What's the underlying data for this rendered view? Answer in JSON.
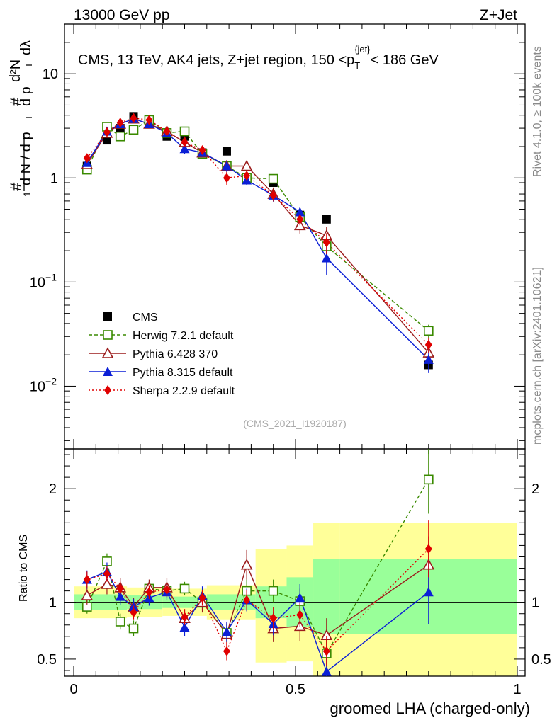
{
  "header": {
    "left": "13000 GeV pp",
    "right": "Z+Jet"
  },
  "side_text": {
    "rivet": "Rivet 4.1.0, ≥ 100k events",
    "source": "mcplots.cern.ch [arXiv:2401.10621]"
  },
  "chart_data": {
    "type": "scatter",
    "title": "CMS, 13 TeV, AK4 jets, Z+jet region, 150 <p",
    "title_sub": "T",
    "title_sup": "{jet}",
    "title_tail": "< 186 GeV",
    "analysis_id": "(CMS_2021_I1920187)",
    "xlabel": "groomed LHA (charged-only)",
    "ylabel_top": "1 / dN/dp_T  d²N / dp_T dλ",
    "ylabel_parts": {
      "hash": "#",
      "one": "1",
      "dN": "d N / d p",
      "d2N": "d²N",
      "dpdl": "d p",
      "lambda": "dλ",
      "T": "T"
    },
    "ylabel_ratio": "Ratio to CMS",
    "xlim": [
      0,
      1
    ],
    "ylim_main": [
      0.0025,
      30
    ],
    "ylim_ratio": [
      0.35,
      2.35
    ],
    "x_ticks": [
      {
        "v": 0,
        "label": "0"
      },
      {
        "v": 0.5,
        "label": "0.5"
      },
      {
        "v": 1,
        "label": "1"
      }
    ],
    "y_ticks_main": [
      {
        "v": 0.01,
        "base": "10",
        "exp": "−2"
      },
      {
        "v": 0.1,
        "base": "10",
        "exp": "−1"
      },
      {
        "v": 1,
        "base": "1",
        "exp": ""
      },
      {
        "v": 10,
        "base": "10",
        "exp": ""
      }
    ],
    "y_ticks_ratio": [
      {
        "v": 0.5,
        "label": "0.5"
      },
      {
        "v": 1,
        "label": "1"
      },
      {
        "v": 2,
        "label": "2"
      }
    ],
    "x": [
      0.03,
      0.075,
      0.105,
      0.135,
      0.17,
      0.21,
      0.25,
      0.29,
      0.345,
      0.39,
      0.45,
      0.51,
      0.57,
      0.8
    ],
    "bands": [
      {
        "x0": 0.0,
        "x1": 0.12,
        "i0": 0.93,
        "i1": 1.07,
        "o0": 0.86,
        "o1": 1.14
      },
      {
        "x0": 0.12,
        "x1": 0.2,
        "i0": 0.94,
        "i1": 1.06,
        "o0": 0.87,
        "o1": 1.13
      },
      {
        "x0": 0.2,
        "x1": 0.3,
        "i0": 0.95,
        "i1": 1.05,
        "o0": 0.88,
        "o1": 1.12
      },
      {
        "x0": 0.3,
        "x1": 0.41,
        "i0": 0.93,
        "i1": 1.07,
        "o0": 0.85,
        "o1": 1.15
      },
      {
        "x0": 0.41,
        "x1": 0.48,
        "i0": 0.86,
        "i1": 1.14,
        "o0": 0.47,
        "o1": 1.47
      },
      {
        "x0": 0.48,
        "x1": 0.54,
        "i0": 0.78,
        "i1": 1.22,
        "o0": 0.48,
        "o1": 1.5
      },
      {
        "x0": 0.54,
        "x1": 0.6,
        "i0": 0.72,
        "i1": 1.38,
        "o0": 0.35,
        "o1": 1.7
      },
      {
        "x0": 0.6,
        "x1": 1.0,
        "i0": 0.72,
        "i1": 1.38,
        "o0": 0.35,
        "o1": 1.7
      }
    ],
    "series": [
      {
        "name": "CMS",
        "color": "#000000",
        "marker": "square-filled",
        "dash": "none",
        "values": [
          1.3,
          2.3,
          3.0,
          3.9,
          3.3,
          2.5,
          2.5,
          1.75,
          1.8,
          0.97,
          0.9,
          0.44,
          0.4,
          0.016
        ],
        "ratio": [
          1,
          1,
          1,
          1,
          1,
          1,
          1,
          1,
          1,
          1,
          1,
          1,
          1,
          1
        ],
        "ratio_err": [
          0,
          0,
          0,
          0,
          0,
          0,
          0,
          0,
          0,
          0,
          0,
          0,
          0,
          0
        ]
      },
      {
        "name": "Herwig 7.2.1 default",
        "color": "#3a8a00",
        "marker": "square-open",
        "dash": "5,3",
        "values": [
          1.2,
          3.1,
          2.5,
          2.9,
          3.6,
          2.7,
          2.8,
          1.7,
          1.3,
          1.0,
          0.98,
          0.42,
          0.22,
          0.034
        ],
        "ratio": [
          0.96,
          1.36,
          0.83,
          0.77,
          1.12,
          1.1,
          1.12,
          1.0,
          0.73,
          1.1,
          1.1,
          1.01,
          0.55,
          2.08
        ],
        "ratio_err": [
          0.06,
          0.07,
          0.07,
          0.07,
          0.06,
          0.06,
          0.06,
          0.07,
          0.08,
          0.1,
          0.1,
          0.11,
          0.13,
          0.3
        ]
      },
      {
        "name": "Pythia 6.428 370",
        "color": "#9b1b1b",
        "marker": "triangle-open",
        "dash": "none",
        "values": [
          1.35,
          2.7,
          3.3,
          3.7,
          3.3,
          2.8,
          2.2,
          1.75,
          1.3,
          1.3,
          0.7,
          0.35,
          0.28,
          0.021
        ],
        "ratio": [
          1.06,
          1.16,
          1.13,
          0.96,
          1.13,
          1.13,
          0.86,
          1.0,
          0.72,
          1.33,
          0.77,
          0.79,
          0.71,
          1.33
        ],
        "ratio_err": [
          0.08,
          0.09,
          0.08,
          0.08,
          0.07,
          0.08,
          0.08,
          0.09,
          0.1,
          0.13,
          0.12,
          0.13,
          0.15,
          0.25
        ]
      },
      {
        "name": "Pythia 8.315 default",
        "color": "#0b1fd6",
        "marker": "triangle-filled",
        "dash": "none",
        "values": [
          1.4,
          2.8,
          3.3,
          3.7,
          3.3,
          2.7,
          1.9,
          1.75,
          1.3,
          0.95,
          0.68,
          0.47,
          0.17,
          0.018
        ],
        "ratio": [
          1.2,
          1.27,
          1.05,
          0.96,
          1.04,
          1.09,
          0.78,
          1.06,
          0.74,
          1.02,
          0.81,
          1.04,
          0.39,
          1.09
        ],
        "ratio_err": [
          0.08,
          0.08,
          0.07,
          0.07,
          0.07,
          0.07,
          0.08,
          0.08,
          0.09,
          0.1,
          0.1,
          0.12,
          0.12,
          0.28
        ]
      },
      {
        "name": "Sherpa 2.2.9 default",
        "color": "#e00000",
        "marker": "diamond-filled",
        "dash": "2,3",
        "values": [
          1.55,
          2.75,
          3.4,
          3.75,
          3.6,
          2.8,
          2.2,
          1.85,
          1.0,
          1.05,
          0.68,
          0.4,
          0.24,
          0.025
        ],
        "ratio": [
          1.2,
          1.25,
          1.12,
          0.91,
          1.09,
          1.11,
          0.87,
          1.04,
          0.57,
          1.02,
          0.86,
          0.89,
          0.57,
          1.47
        ],
        "ratio_err": [
          0.07,
          0.07,
          0.06,
          0.06,
          0.06,
          0.06,
          0.07,
          0.07,
          0.08,
          0.09,
          0.1,
          0.11,
          0.13,
          0.25
        ]
      }
    ],
    "legend_position": "left-middle"
  }
}
